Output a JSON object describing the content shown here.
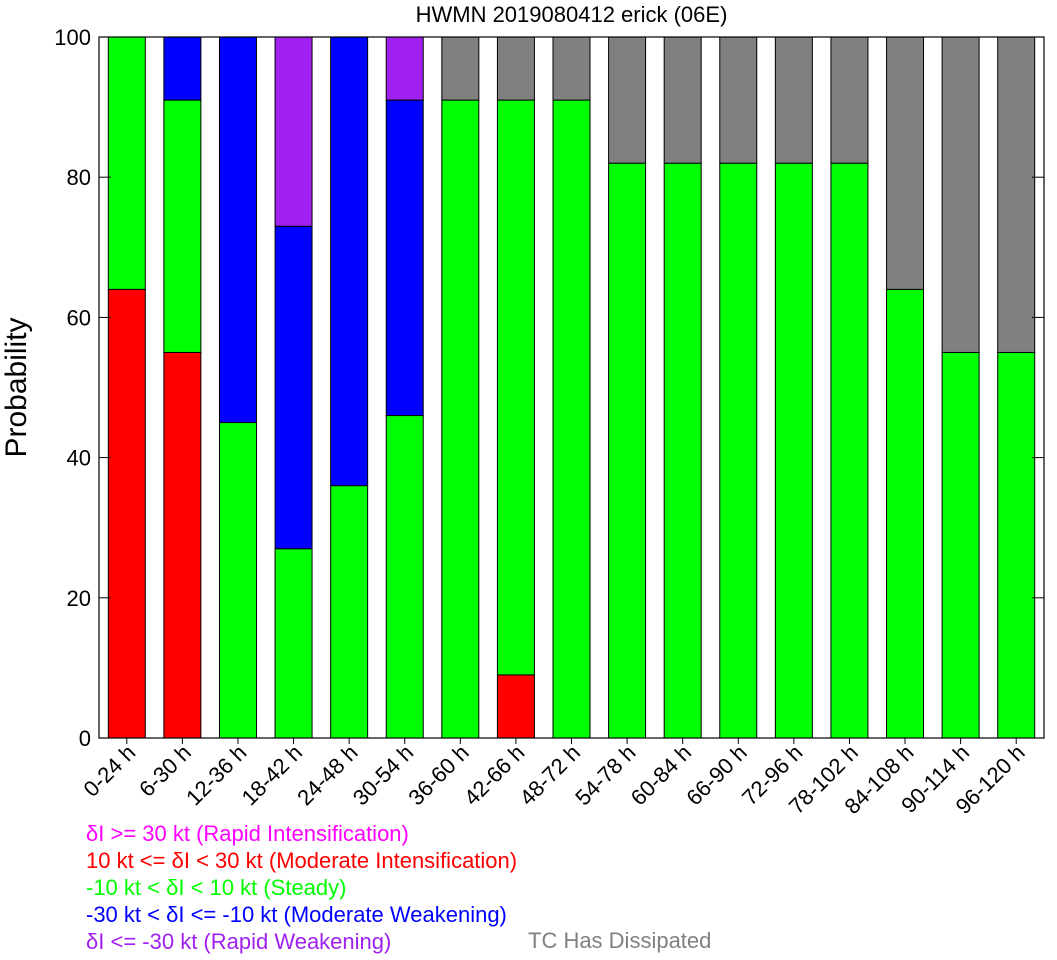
{
  "chart_data": {
    "type": "bar",
    "stacked": true,
    "title": "HWMN 2019080412 erick (06E)",
    "xlabel": "",
    "ylabel": "Probability",
    "ylim": [
      0,
      100
    ],
    "yticks": [
      "0",
      "20",
      "40",
      "60",
      "80",
      "100"
    ],
    "grid": false,
    "categories": [
      "0-24 h",
      "6-30 h",
      "12-36 h",
      "18-42 h",
      "24-48 h",
      "30-54 h",
      "36-60 h",
      "42-66 h",
      "48-72 h",
      "54-78 h",
      "60-84 h",
      "66-90 h",
      "72-96 h",
      "78-102 h",
      "84-108 h",
      "90-114 h",
      "96-120 h"
    ],
    "series": [
      {
        "key": "ri",
        "color": "#ff00ff",
        "values": [
          0,
          0,
          0,
          0,
          0,
          0,
          0,
          0,
          0,
          0,
          0,
          0,
          0,
          0,
          0,
          0,
          0
        ]
      },
      {
        "key": "mi",
        "color": "#ff0000",
        "values": [
          64,
          55,
          0,
          0,
          0,
          0,
          0,
          9,
          0,
          0,
          0,
          0,
          0,
          0,
          0,
          0,
          0
        ]
      },
      {
        "key": "steady",
        "color": "#00ff00",
        "values": [
          36,
          36,
          45,
          27,
          36,
          46,
          91,
          82,
          91,
          82,
          82,
          82,
          82,
          82,
          64,
          55,
          55
        ]
      },
      {
        "key": "mw",
        "color": "#0000ff",
        "values": [
          0,
          9,
          55,
          46,
          64,
          45,
          0,
          0,
          0,
          0,
          0,
          0,
          0,
          0,
          0,
          0,
          0
        ]
      },
      {
        "key": "rw",
        "color": "#a020f0",
        "values": [
          0,
          0,
          0,
          27,
          0,
          9,
          0,
          0,
          0,
          0,
          0,
          0,
          0,
          0,
          0,
          0,
          0
        ]
      },
      {
        "key": "dissipated",
        "color": "#808080",
        "values": [
          0,
          0,
          0,
          0,
          0,
          0,
          9,
          9,
          9,
          18,
          18,
          18,
          18,
          18,
          36,
          45,
          45
        ]
      }
    ]
  },
  "legend": {
    "lines": [
      {
        "pre": "",
        "post": "I >= 30 kt (Rapid Intensification)",
        "color": "#ff00ff"
      },
      {
        "pre": "10 kt <= ",
        "post": "I < 30 kt (Moderate Intensification)",
        "color": "#ff0000"
      },
      {
        "pre": "-10 kt < ",
        "post": "I < 10 kt (Steady)",
        "color": "#00ff00"
      },
      {
        "pre": "-30 kt < ",
        "post": "I <= -10 kt (Moderate Weakening)",
        "color": "#0000ff"
      },
      {
        "pre": "",
        "post": "I <= -30 kt (Rapid Weakening)",
        "color": "#a020f0"
      }
    ],
    "delta": "δ",
    "dissipated": {
      "text": "TC Has Dissipated",
      "color": "#808080"
    }
  }
}
